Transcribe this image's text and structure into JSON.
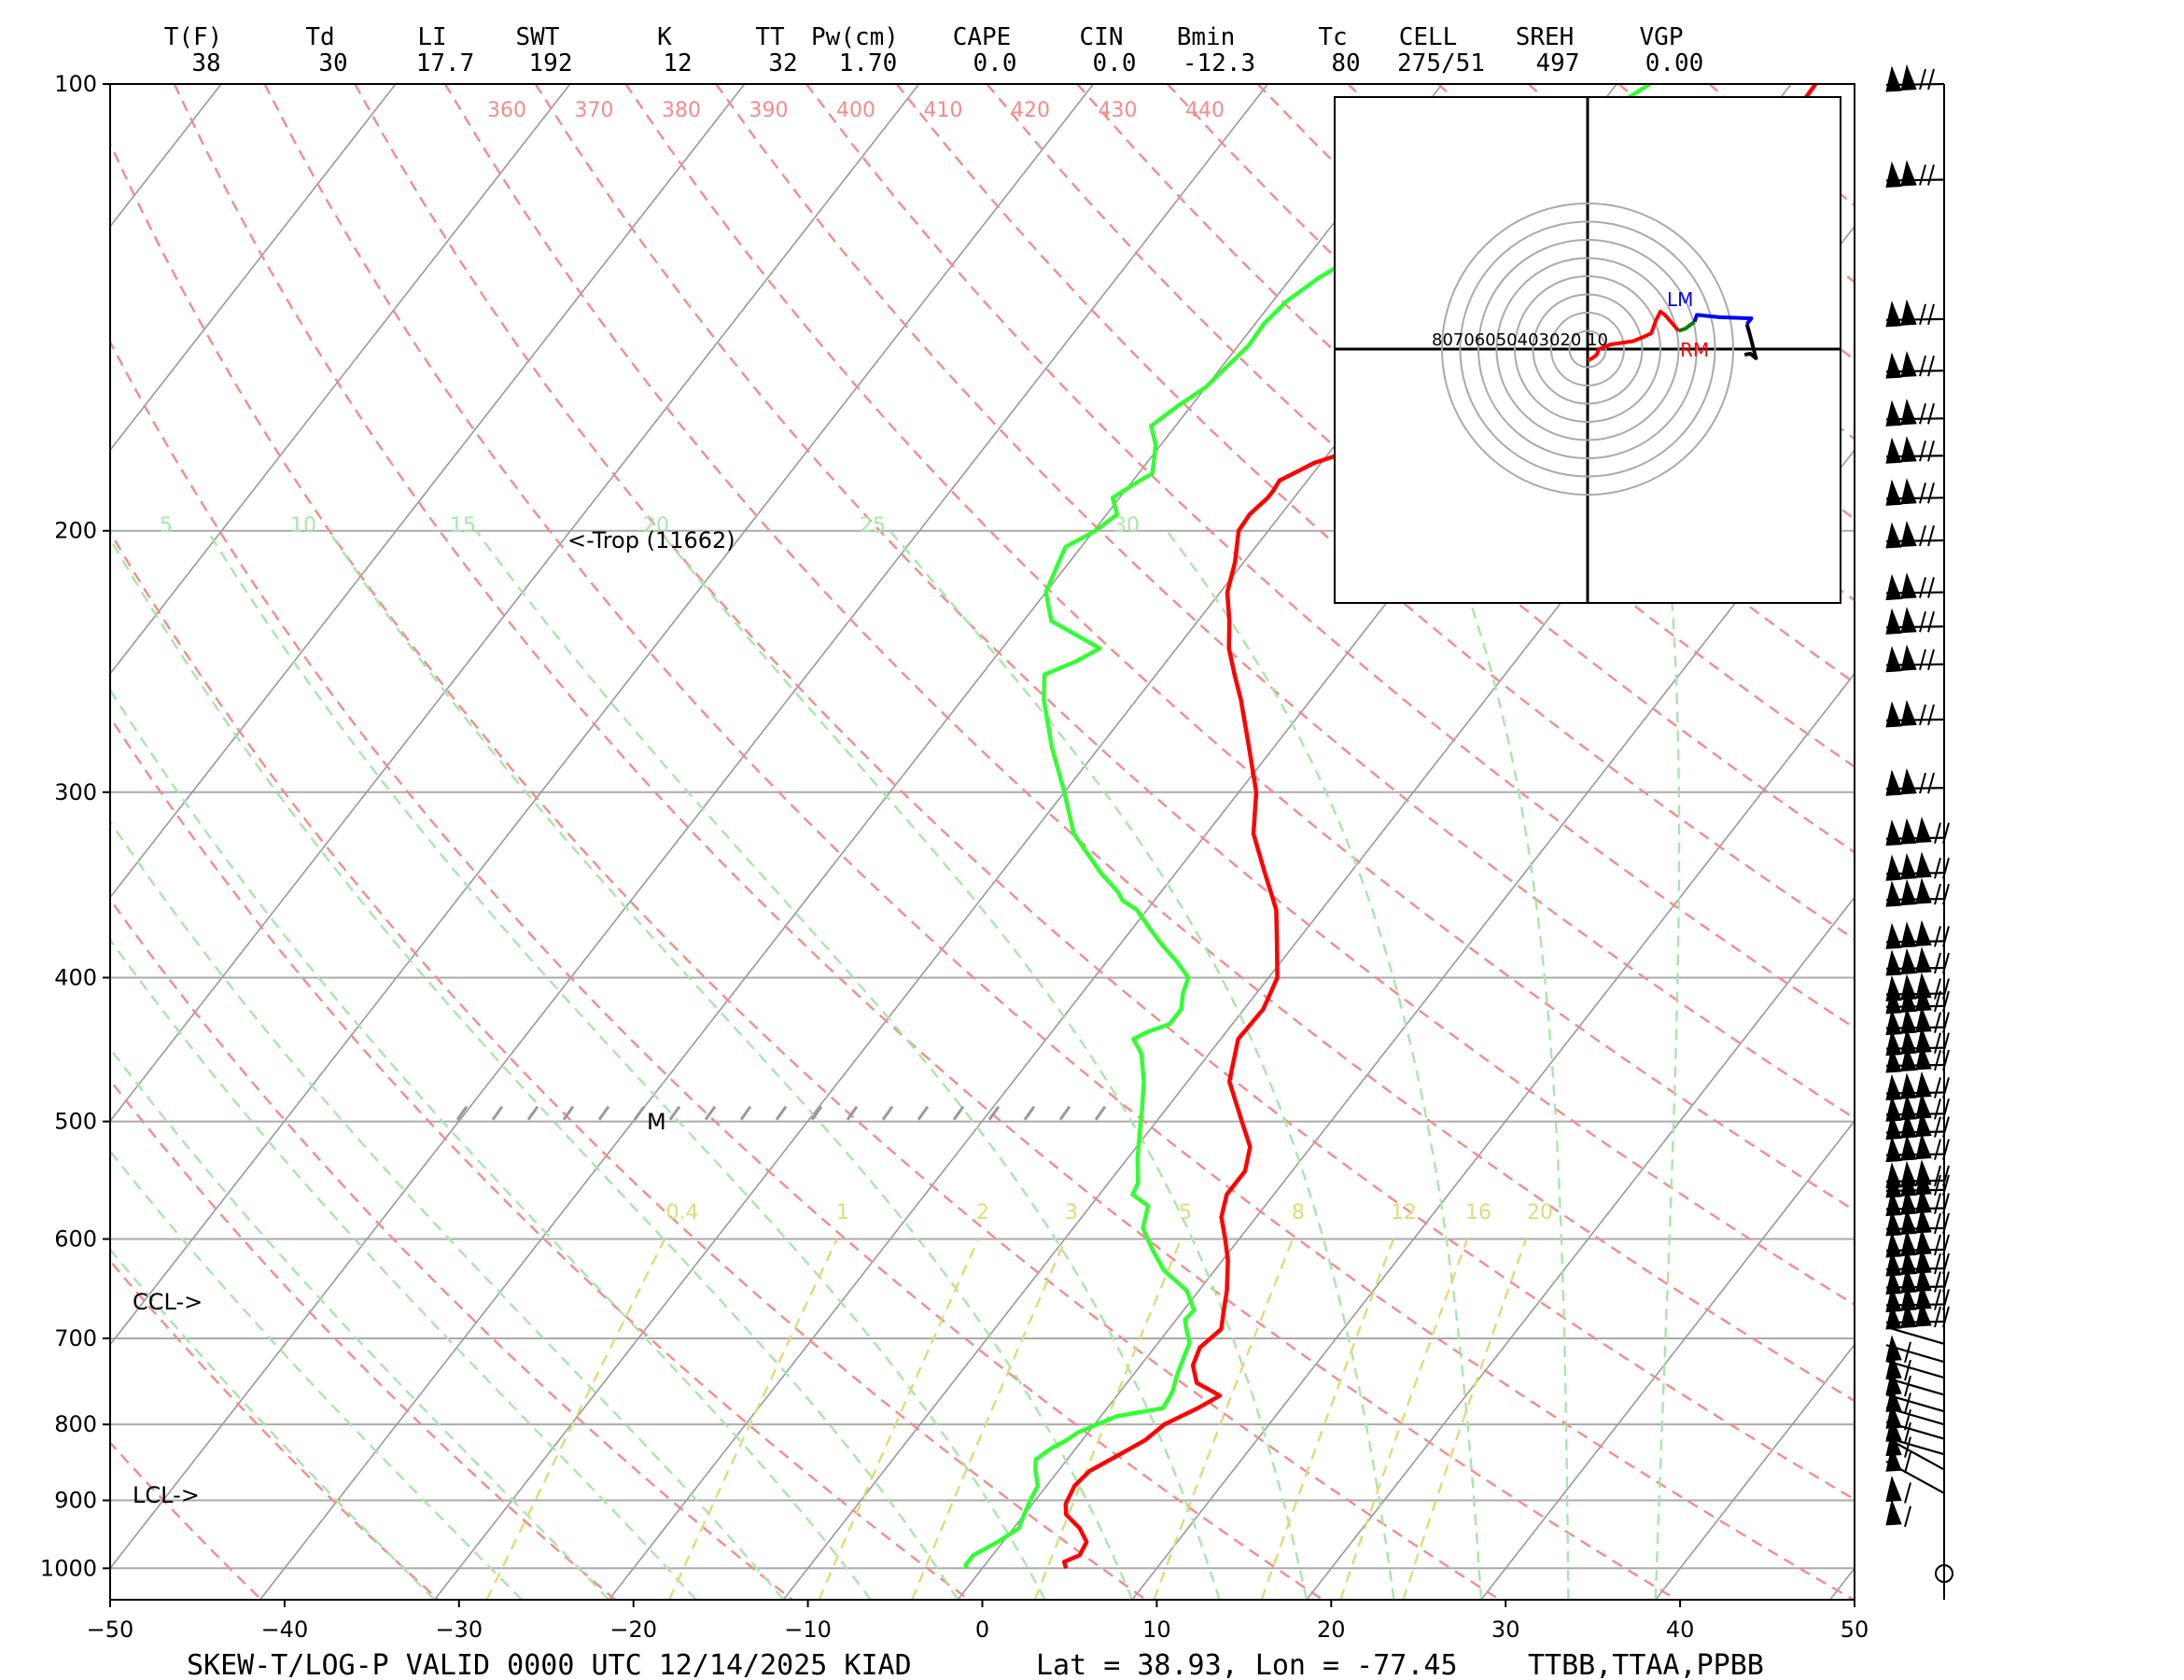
{
  "indices": {
    "headers": [
      "T(F)",
      "Td",
      "LI",
      "SWT",
      "K",
      "TT",
      "Pw(cm)",
      "CAPE",
      "CIN",
      "Bmin",
      "Tc",
      "CELL",
      "SREH",
      "VGP"
    ],
    "values": [
      "38",
      "30",
      "17.7",
      "192",
      "12",
      "32",
      "1.70",
      "0.0",
      "0.0",
      "-12.3",
      "80",
      "275/51",
      "497",
      "0.00"
    ]
  },
  "footer": {
    "title": "SKEW-T/LOG-P  VALID 0000 UTC 12/14/2025   KIAD",
    "location": "Lat = 38.93, Lon = -77.45",
    "sources": "TTBB,TTAA,PPBB"
  },
  "annotations": {
    "trop": "<-Trop (11662)",
    "ccl": "CCL->",
    "lcl": "LCL->",
    "mark_m": "M"
  },
  "colors": {
    "temperature": "#ff0000",
    "dewpoint": "#33ff33",
    "dry_adiabat": "#f48b8b",
    "moist_adiabat": "#a8e6a8",
    "mixing_ratio": "#dcdc7a",
    "isotherm": "#999999",
    "storm_lm": "#0000ff",
    "storm_rm": "#ff0000",
    "hodo_green": "#008000"
  },
  "chart_data": [
    {
      "type": "line",
      "name": "skew-t",
      "xlim": [
        -50,
        50
      ],
      "x_ticks": [
        -50,
        -40,
        -30,
        -20,
        -10,
        0,
        10,
        20,
        30,
        40,
        50
      ],
      "pressure_ticks": [
        100,
        200,
        300,
        400,
        500,
        600,
        700,
        800,
        900,
        1000
      ],
      "grid": true,
      "theta_labels": [
        "360",
        "370",
        "380",
        "390",
        "400",
        "410",
        "420",
        "430",
        "440"
      ],
      "moist_labels": [
        "5",
        "10",
        "15",
        "20",
        "25",
        "30"
      ],
      "mixing_ratio_labels": [
        "0.4",
        "1",
        "2",
        "3",
        "5",
        "8",
        "12",
        "16",
        "20"
      ],
      "series": [
        {
          "name": "Temperature",
          "points": [
            [
              1000,
              4.8
            ],
            [
              990,
              4.4
            ],
            [
              980,
              5.0
            ],
            [
              960,
              4.8
            ],
            [
              940,
              3.8
            ],
            [
              920,
              2.4
            ],
            [
              905,
              1.9
            ],
            [
              880,
              1.6
            ],
            [
              860,
              1.8
            ],
            [
              840,
              2.7
            ],
            [
              820,
              3.6
            ],
            [
              800,
              4.0
            ],
            [
              780,
              5.2
            ],
            [
              765,
              5.9
            ],
            [
              750,
              4.0
            ],
            [
              730,
              3.0
            ],
            [
              710,
              2.6
            ],
            [
              690,
              3.0
            ],
            [
              670,
              2.3
            ],
            [
              650,
              1.6
            ],
            [
              620,
              0.3
            ],
            [
              600,
              -0.8
            ],
            [
              580,
              -2.0
            ],
            [
              560,
              -2.7
            ],
            [
              540,
              -2.7
            ],
            [
              520,
              -3.5
            ],
            [
              500,
              -5.1
            ],
            [
              470,
              -7.6
            ],
            [
              440,
              -9.0
            ],
            [
              420,
              -8.9
            ],
            [
              400,
              -9.5
            ],
            [
              380,
              -11.0
            ],
            [
              360,
              -12.6
            ],
            [
              340,
              -14.9
            ],
            [
              320,
              -17.3
            ],
            [
              300,
              -19.0
            ],
            [
              280,
              -21.4
            ],
            [
              260,
              -24.0
            ],
            [
              250,
              -25.5
            ],
            [
              240,
              -27.0
            ],
            [
              230,
              -28.2
            ],
            [
              220,
              -29.6
            ],
            [
              210,
              -30.5
            ],
            [
              200,
              -31.7
            ],
            [
              195,
              -31.8
            ],
            [
              190,
              -31.5
            ],
            [
              188,
              -31.5
            ],
            [
              185,
              -31.6
            ],
            [
              180,
              -30.4
            ],
            [
              175,
              -28.0
            ],
            [
              170,
              -25.8
            ],
            [
              165,
              -24.3
            ],
            [
              160,
              -23.4
            ],
            [
              155,
              -24.0
            ],
            [
              150,
              -24.8
            ],
            [
              145,
              -22.8
            ],
            [
              142,
              -21.5
            ],
            [
              140,
              -21.4
            ],
            [
              130,
              -19.2
            ],
            [
              120,
              -17.9
            ],
            [
              115,
              -18.0
            ],
            [
              110,
              -18.4
            ],
            [
              100,
              -18.6
            ]
          ]
        },
        {
          "name": "Dewpoint",
          "points": [
            [
              1000,
              -0.9
            ],
            [
              995,
              -1.1
            ],
            [
              980,
              -1.1
            ],
            [
              960,
              -0.3
            ],
            [
              940,
              0.3
            ],
            [
              920,
              0.0
            ],
            [
              900,
              -0.3
            ],
            [
              880,
              -0.5
            ],
            [
              860,
              -1.3
            ],
            [
              845,
              -1.8
            ],
            [
              830,
              -1.4
            ],
            [
              820,
              -0.9
            ],
            [
              810,
              -0.6
            ],
            [
              790,
              0.9
            ],
            [
              780,
              3.2
            ],
            [
              760,
              3.0
            ],
            [
              740,
              2.5
            ],
            [
              720,
              2.1
            ],
            [
              705,
              1.8
            ],
            [
              690,
              1.0
            ],
            [
              680,
              0.5
            ],
            [
              670,
              0.6
            ],
            [
              650,
              -0.7
            ],
            [
              630,
              -2.9
            ],
            [
              610,
              -4.5
            ],
            [
              590,
              -6.0
            ],
            [
              570,
              -6.7
            ],
            [
              560,
              -8.1
            ],
            [
              550,
              -8.3
            ],
            [
              530,
              -9.4
            ],
            [
              510,
              -10.4
            ],
            [
              490,
              -11.4
            ],
            [
              470,
              -12.5
            ],
            [
              450,
              -13.9
            ],
            [
              440,
              -15.0
            ],
            [
              435,
              -14.5
            ],
            [
              430,
              -13.6
            ],
            [
              420,
              -13.6
            ],
            [
              410,
              -14.2
            ],
            [
              400,
              -14.6
            ],
            [
              390,
              -16.0
            ],
            [
              380,
              -17.6
            ],
            [
              370,
              -19.1
            ],
            [
              360,
              -20.6
            ],
            [
              355,
              -21.8
            ],
            [
              350,
              -22.5
            ],
            [
              340,
              -24.3
            ],
            [
              320,
              -27.6
            ],
            [
              300,
              -30.0
            ],
            [
              280,
              -32.7
            ],
            [
              260,
              -35.3
            ],
            [
              250,
              -36.4
            ],
            [
              245,
              -35.2
            ],
            [
              240,
              -34.4
            ],
            [
              230,
              -38.4
            ],
            [
              220,
              -40.0
            ],
            [
              210,
              -40.6
            ],
            [
              205,
              -40.9
            ],
            [
              200,
              -39.9
            ],
            [
              195,
              -39.4
            ],
            [
              190,
              -40.4
            ],
            [
              185,
              -39.6
            ],
            [
              183,
              -39.2
            ],
            [
              175,
              -40.3
            ],
            [
              170,
              -41.4
            ],
            [
              165,
              -40.8
            ],
            [
              160,
              -40.0
            ],
            [
              150,
              -39.4
            ],
            [
              145,
              -39.5
            ],
            [
              140,
              -39.2
            ],
            [
              135,
              -38.4
            ],
            [
              125,
              -35.8
            ],
            [
              118,
              -33.0
            ],
            [
              112,
              -31.5
            ],
            [
              106,
              -29.8
            ],
            [
              100,
              -28.1
            ]
          ]
        }
      ],
      "wind_barb_pressures": [
        100,
        116,
        144,
        156,
        168,
        178,
        190,
        203,
        220,
        232,
        246,
        268,
        298,
        322,
        340,
        354,
        378,
        394,
        410,
        418,
        432,
        446,
        458,
        478,
        494,
        508,
        526,
        548,
        556,
        572,
        590,
        610,
        628,
        646,
        664,
        682,
        706,
        726,
        744,
        764,
        784,
        800,
        818,
        838,
        858,
        890
      ]
    },
    {
      "type": "line",
      "name": "hodograph",
      "rings_kt": [
        10,
        20,
        30,
        40,
        50,
        60,
        70,
        80
      ],
      "ring_label": "80706050403020 10",
      "storm_labels": [
        "LM",
        "RM"
      ],
      "segments": [
        {
          "color": "red",
          "points": [
            [
              0,
              -10
            ],
            [
              4,
              -8
            ],
            [
              8,
              -5
            ],
            [
              10,
              0
            ],
            [
              20,
              4
            ],
            [
              40,
              7
            ],
            [
              50,
              11
            ],
            [
              56,
              14
            ],
            [
              60,
              25
            ],
            [
              64,
              33
            ],
            [
              68,
              30
            ],
            [
              74,
              23
            ],
            [
              80,
              16
            ]
          ]
        },
        {
          "color": "green",
          "points": [
            [
              80,
              16
            ],
            [
              86,
              18
            ],
            [
              90,
              21
            ],
            [
              94,
              24
            ]
          ]
        },
        {
          "color": "blue",
          "points": [
            [
              94,
              24
            ],
            [
              96,
              30
            ],
            [
              116,
              28
            ],
            [
              144,
              27
            ],
            [
              140,
              22
            ]
          ]
        },
        {
          "color": "black",
          "points": [
            [
              140,
              22
            ],
            [
              142,
              15
            ],
            [
              148,
              -8
            ],
            [
              143,
              -4
            ],
            [
              138,
              -5
            ]
          ]
        }
      ]
    }
  ]
}
